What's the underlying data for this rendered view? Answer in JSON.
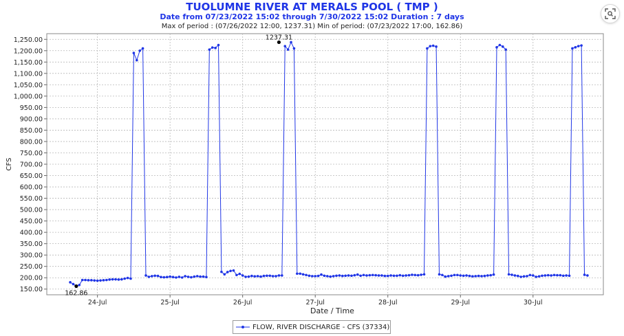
{
  "header": {
    "title": "TUOLUMNE RIVER AT MERALS POOL ( TMP )",
    "subtitle": "Date from 07/23/2022 15:02 through 7/30/2022 15:02 Duration : 7 days",
    "stats": "Max of period : (07/26/2022 12:00, 1237.31)  Min of period: (07/23/2022 17:00,  162.86)"
  },
  "toolbar": {
    "lens_icon": "lens-search-icon"
  },
  "colors": {
    "series": "#1f35e6",
    "annotation": "#000000",
    "grid": "#b8b8b8"
  },
  "chart_data": {
    "type": "line",
    "xlabel": "Date / Time",
    "ylabel": "CFS",
    "ylim": [
      125,
      1275
    ],
    "xlim_hours": [
      -7.75,
      176.25
    ],
    "x_start": "07/23/2022 15:00",
    "x_tick_labels": [
      "24-Jul",
      "25-Jul",
      "26-Jul",
      "27-Jul",
      "28-Jul",
      "29-Jul",
      "30-Jul"
    ],
    "x_tick_hours": [
      9,
      33,
      57,
      81,
      105,
      129,
      153
    ],
    "y_tick_labels": [
      "150.00",
      "200.00",
      "250.00",
      "300.00",
      "350.00",
      "400.00",
      "450.00",
      "500.00",
      "550.00",
      "600.00",
      "650.00",
      "700.00",
      "750.00",
      "800.00",
      "850.00",
      "900.00",
      "950.00",
      "1,000.00",
      "1,050.00",
      "1,100.00",
      "1,150.00",
      "1,200.00",
      "1,250.00"
    ],
    "y_tick_values": [
      150,
      200,
      250,
      300,
      350,
      400,
      450,
      500,
      550,
      600,
      650,
      700,
      750,
      800,
      850,
      900,
      950,
      1000,
      1050,
      1100,
      1150,
      1200,
      1250
    ],
    "grid": true,
    "legend_position": "bottom-center",
    "series": [
      {
        "name": "FLOW, RIVER DISCHARGE - CFS (37334)",
        "values": [
          180,
          172,
          162.86,
          168,
          190,
          190,
          189,
          189,
          188,
          187,
          188,
          189,
          190,
          192,
          193,
          193,
          192,
          193,
          196,
          199,
          196,
          1190,
          1158,
          1200,
          1210,
          210,
          204,
          207,
          209,
          208,
          203,
          202,
          203,
          205,
          203,
          201,
          204,
          201,
          207,
          204,
          202,
          205,
          207,
          205,
          205,
          203,
          1205,
          1214,
          1212,
          1225,
          226,
          215,
          225,
          230,
          232,
          212,
          217,
          210,
          204,
          205,
          208,
          206,
          207,
          205,
          208,
          209,
          209,
          207,
          207,
          210,
          210,
          1220,
          1205,
          1237.31,
          1210,
          218,
          218,
          215,
          212,
          209,
          207,
          207,
          208,
          214,
          209,
          207,
          205,
          207,
          209,
          210,
          208,
          209,
          210,
          209,
          211,
          214,
          209,
          212,
          210,
          211,
          212,
          211,
          210,
          210,
          208,
          208,
          210,
          209,
          209,
          211,
          209,
          210,
          211,
          213,
          212,
          211,
          213,
          215,
          1210,
          1220,
          1222,
          1218,
          215,
          212,
          205,
          207,
          209,
          212,
          212,
          210,
          209,
          210,
          208,
          206,
          207,
          208,
          207,
          208,
          210,
          211,
          214,
          1215,
          1225,
          1218,
          1205,
          215,
          213,
          210,
          208,
          204,
          206,
          207,
          212,
          210,
          204,
          206,
          209,
          210,
          211,
          210,
          212,
          211,
          211,
          209,
          210,
          209,
          1210,
          1215,
          1220,
          1223,
          213,
          210
        ]
      }
    ],
    "annotations": [
      {
        "label": "162.86",
        "x_hour": 2,
        "y": 162.86
      },
      {
        "label": "1237.31",
        "x_hour": 69,
        "y": 1237.31
      }
    ]
  }
}
